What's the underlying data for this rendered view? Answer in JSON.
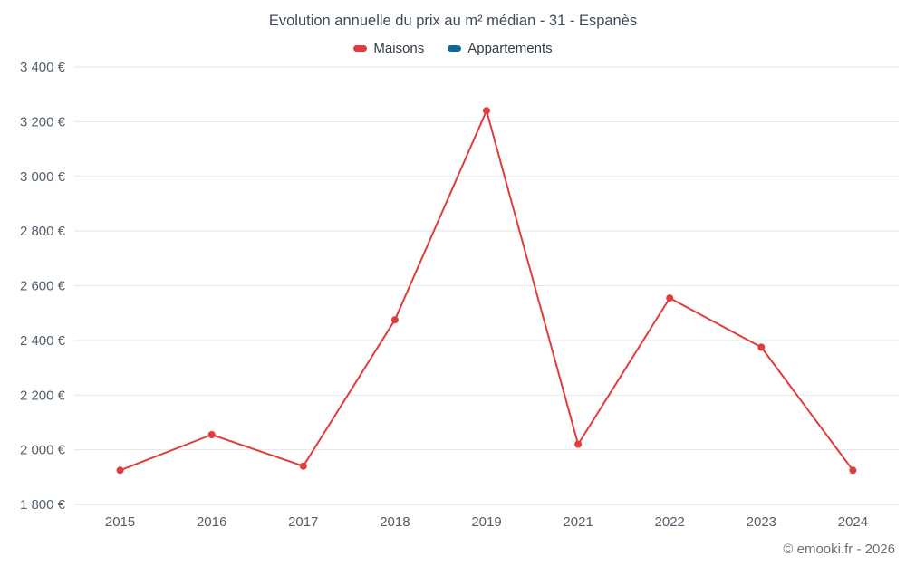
{
  "chart_data": {
    "type": "line",
    "title": "Evolution annuelle du prix au m² médian - 31 - Espanès",
    "categories": [
      "2015",
      "2016",
      "2017",
      "2018",
      "2019",
      "2021",
      "2022",
      "2023",
      "2024"
    ],
    "series": [
      {
        "name": "Maisons",
        "color": "#e03c3c",
        "values": [
          1925,
          2055,
          1940,
          2475,
          3240,
          2020,
          2555,
          2375,
          1925
        ]
      },
      {
        "name": "Appartements",
        "color": "#10689a",
        "values": []
      }
    ],
    "xlabel": "",
    "ylabel": "",
    "ylim": [
      1800,
      3400
    ],
    "ytick_step": 200,
    "ytick_suffix": " €",
    "grid": "horizontal",
    "legend_position": "top"
  },
  "footer": {
    "copyright": "© emooki.fr - 2026"
  }
}
